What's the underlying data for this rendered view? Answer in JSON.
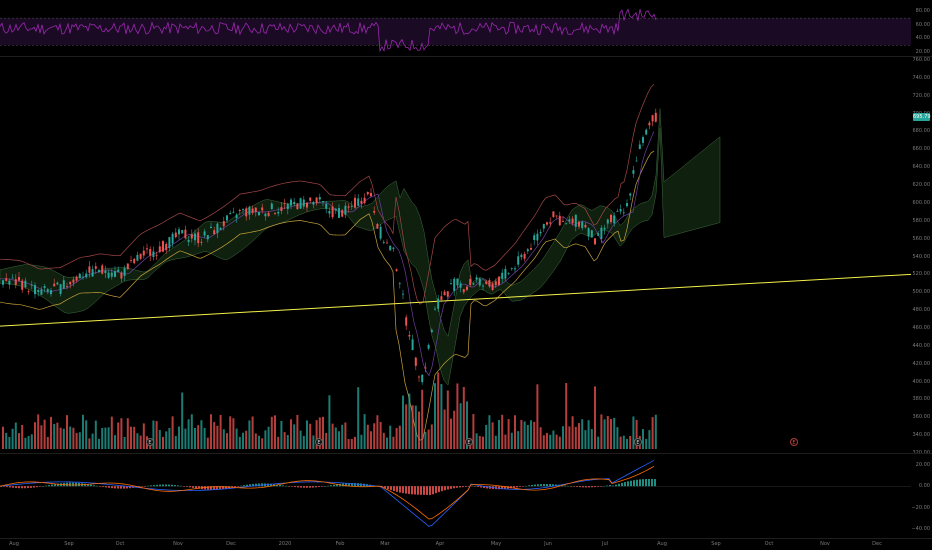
{
  "price_axis": {
    "labels": [
      "760.00",
      "740.00",
      "720.00",
      "700.00",
      "680.00",
      "660.00",
      "640.00",
      "620.00",
      "600.00",
      "580.00",
      "560.00",
      "540.00",
      "520.00",
      "500.00",
      "480.00",
      "460.00",
      "440.00",
      "420.00",
      "400.00",
      "380.00",
      "360.00",
      "340.00",
      "320.00"
    ],
    "last_price": "695.79"
  },
  "rsi_axis": {
    "labels": [
      "80.00",
      "60.00",
      "40.00",
      "20.00"
    ]
  },
  "macd_axis": {
    "labels": [
      "20.00",
      "0.00",
      "−20.00",
      "−40.00"
    ]
  },
  "time_axis": {
    "labels": [
      "Aug",
      "Sep",
      "Oct",
      "Nov",
      "Dec",
      "2020",
      "Feb",
      "Mar",
      "Apr",
      "May",
      "Jun",
      "Jul",
      "Aug",
      "Sep",
      "Oct",
      "Nov",
      "Dec"
    ]
  },
  "earnings_marker": "E",
  "colors": {
    "up": "#26a69a",
    "down": "#ef5350",
    "rsi_line": "#9c27b0",
    "trendline": "#f5f04a",
    "bb_band": "#a34747",
    "cloud_green": "#1b3a1b",
    "macd_line": "#2962ff"
  },
  "chart_data": {
    "type": "candlestick",
    "symbol_price_last": 695.79,
    "ylim": [
      320,
      760
    ],
    "series_note_removed": true,
    "monthly_close_estimate": {
      "x": [
        "Aug",
        "Sep",
        "Oct",
        "Nov",
        "Dec",
        "Jan",
        "Feb",
        "Mar",
        "Apr",
        "May",
        "Jun",
        "Jul"
      ],
      "y": [
        520,
        510,
        530,
        560,
        590,
        600,
        605,
        430,
        480,
        540,
        590,
        695.79
      ]
    },
    "rsi_range": [
      20,
      80
    ],
    "macd_range": [
      -40,
      20
    ]
  }
}
